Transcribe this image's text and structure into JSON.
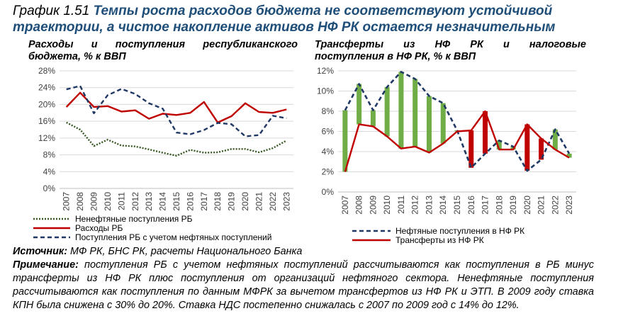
{
  "header": {
    "number": "График 1.51",
    "title": "Темпы роста расходов бюджета не соответствуют устойчивой траектории, а чистое накопление активов НФ РК остается незначительным"
  },
  "colors": {
    "red": "#c00000",
    "dark_blue": "#1f3864",
    "green": "#70ad47",
    "dotted": "#375623",
    "grid": "#d9d9d9",
    "title_blue": "#1f4e79"
  },
  "chart_data": [
    {
      "type": "line",
      "title_line1": "Расходы и поступления республиканского",
      "title_line2": "бюджета, % к ВВП",
      "x": [
        "2007",
        "2008",
        "2009",
        "2010",
        "2011",
        "2012",
        "2013",
        "2014",
        "2015",
        "2016",
        "2017",
        "2018",
        "2019",
        "2020",
        "2021",
        "2022",
        "2023"
      ],
      "ylim": [
        0,
        28
      ],
      "yticks": [
        "0%",
        "4%",
        "8%",
        "12%",
        "16%",
        "20%",
        "24%",
        "28%"
      ],
      "grid": true,
      "legend_position": "bottom",
      "series": [
        {
          "name": "Ненефтяные поступления РБ",
          "style": "dotted",
          "values": [
            15.7,
            14.0,
            10.1,
            11.6,
            10.2,
            10.0,
            9.3,
            8.5,
            7.8,
            9.2,
            8.5,
            8.6,
            9.4,
            9.4,
            8.6,
            9.6,
            11.4
          ]
        },
        {
          "name": "Расходы РБ",
          "style": "solid",
          "values": [
            19.4,
            22.8,
            19.4,
            19.6,
            18.3,
            18.6,
            16.6,
            17.8,
            17.5,
            18.0,
            20.6,
            15.7,
            17.2,
            20.3,
            18.2,
            18.0,
            18.8
          ]
        },
        {
          "name": "Поступления РБ с учетом нефтяных поступлений",
          "style": "dashed",
          "values": [
            23.6,
            24.4,
            17.9,
            22.2,
            23.7,
            22.5,
            20.3,
            19.0,
            13.3,
            12.9,
            13.9,
            15.6,
            15.3,
            12.4,
            12.7,
            17.3,
            16.7
          ]
        }
      ]
    },
    {
      "type": "line",
      "title_line1": "Трансферты из НФ РК и налоговые",
      "title_line2": "поступления в НФ РК, % к ВВП",
      "x": [
        "2007",
        "2008",
        "2009",
        "2010",
        "2011",
        "2012",
        "2013",
        "2014",
        "2015",
        "2016",
        "2017",
        "2018",
        "2019",
        "2020",
        "2021",
        "2022",
        "2023"
      ],
      "ylim": [
        0,
        12
      ],
      "yticks": [
        "0%",
        "2%",
        "4%",
        "6%",
        "8%",
        "10%",
        "12%"
      ],
      "grid": true,
      "legend_position": "bottom",
      "series": [
        {
          "name": "Нефтяные поступления в НФ РК",
          "style": "dashed",
          "values": [
            8.1,
            10.7,
            8.1,
            10.4,
            11.9,
            11.2,
            9.5,
            8.8,
            6.1,
            2.4,
            3.8,
            5.1,
            4.5,
            2.1,
            3.2,
            6.2,
            3.8
          ]
        },
        {
          "name": "Трансферты из НФ РК",
          "style": "solid",
          "values": [
            2.0,
            6.7,
            6.5,
            5.5,
            4.3,
            4.5,
            3.9,
            4.8,
            6.0,
            6.1,
            8.0,
            4.2,
            4.2,
            6.7,
            5.3,
            4.2,
            3.4
          ]
        }
      ]
    }
  ],
  "notes": {
    "source_label": "Источник:",
    "source_text": " МФ РК, БНС РК, расчеты Национального Банка",
    "note_label": "Примечание:",
    "note_text": " поступления РБ с учетом нефтяных поступлений рассчитываются как поступления в РБ минус трансферты из НФ РК плюс поступления от организаций нефтяного сектора. Ненефтяные поступления рассчитываются как поступления по данным МФРК за вычетом трансфертов из НФ РК и ЭТП. В 2009 году ставка КПН была снижена с 30% до 20%. Ставка НДС постепенно снижалась с 2007 по 2009 год с 14% до 12%."
  }
}
